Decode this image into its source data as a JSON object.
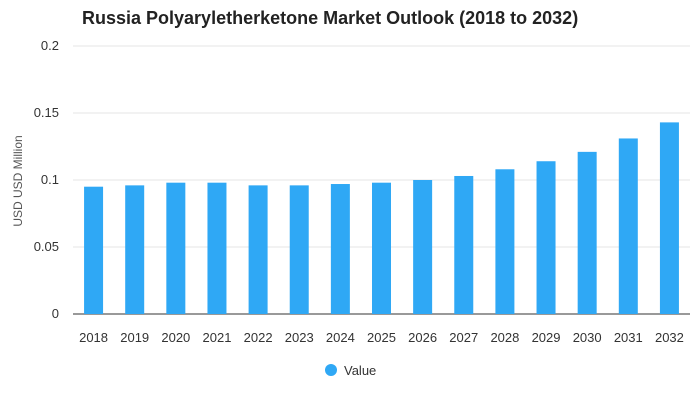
{
  "chart_data": {
    "type": "bar",
    "title": "Russia Polyaryletherketone Market Outlook (2018 to 2032)",
    "ylabel": "USD USD Million",
    "xlabel": "",
    "categories": [
      "2018",
      "2019",
      "2020",
      "2021",
      "2022",
      "2023",
      "2024",
      "2025",
      "2026",
      "2027",
      "2028",
      "2029",
      "2030",
      "2031",
      "2032"
    ],
    "series": [
      {
        "name": "Value",
        "values": [
          0.095,
          0.096,
          0.098,
          0.098,
          0.096,
          0.096,
          0.097,
          0.098,
          0.1,
          0.103,
          0.108,
          0.114,
          0.121,
          0.131,
          0.143
        ]
      }
    ],
    "ylim": [
      0,
      0.2
    ],
    "yticks": [
      "0",
      "0.05",
      "0.1",
      "0.15",
      "0.2"
    ],
    "ytick_values": [
      0,
      0.05,
      0.1,
      0.15,
      0.2
    ],
    "grid": true,
    "legend_position": "bottom",
    "colors": {
      "bar": "#2fa8f5",
      "grid": "#e6e6e6",
      "axis": "#333333"
    }
  }
}
